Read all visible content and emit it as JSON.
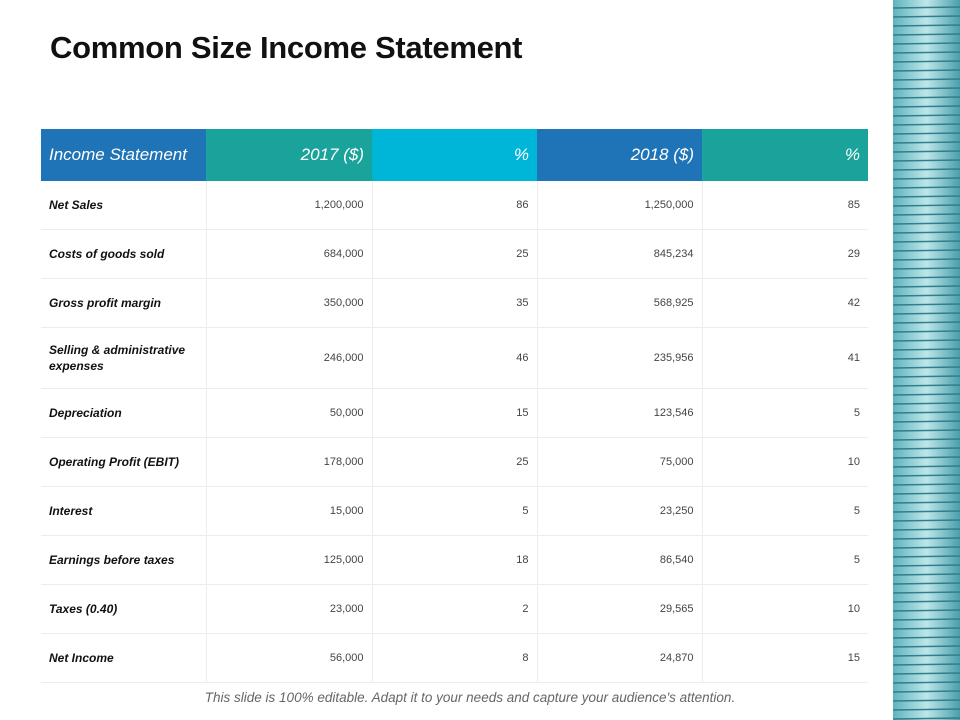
{
  "header": {
    "title": "Common Size Income Statement"
  },
  "table": {
    "columns": [
      "Income Statement",
      "2017 ($)",
      "%",
      "2018 ($)",
      "%"
    ],
    "rows": [
      [
        "Net Sales",
        "1,200,000",
        "86",
        "1,250,000",
        "85"
      ],
      [
        "Costs  of goods sold",
        "684,000",
        "25",
        "845,234",
        "29"
      ],
      [
        "Gross  profit margin",
        "350,000",
        "35",
        "568,925",
        "42"
      ],
      [
        "Selling & administrative expenses",
        "246,000",
        "46",
        "235,956",
        "41"
      ],
      [
        "Depreciation",
        "50,000",
        "15",
        "123,546",
        "5"
      ],
      [
        "Operating Profit  (EBIT)",
        "178,000",
        "25",
        "75,000",
        "10"
      ],
      [
        "Interest",
        "15,000",
        "5",
        "23,250",
        "5"
      ],
      [
        "Earnings before  taxes",
        "125,000",
        "18",
        "86,540",
        "5"
      ],
      [
        "Taxes  (0.40)",
        "23,000",
        "2",
        "29,565",
        "10"
      ],
      [
        "Net Income",
        "56,000",
        "8",
        "24,870",
        "15"
      ]
    ]
  },
  "footer": {
    "note": "This slide is 100% editable.  Adapt it to your needs and capture your audience's attention."
  }
}
